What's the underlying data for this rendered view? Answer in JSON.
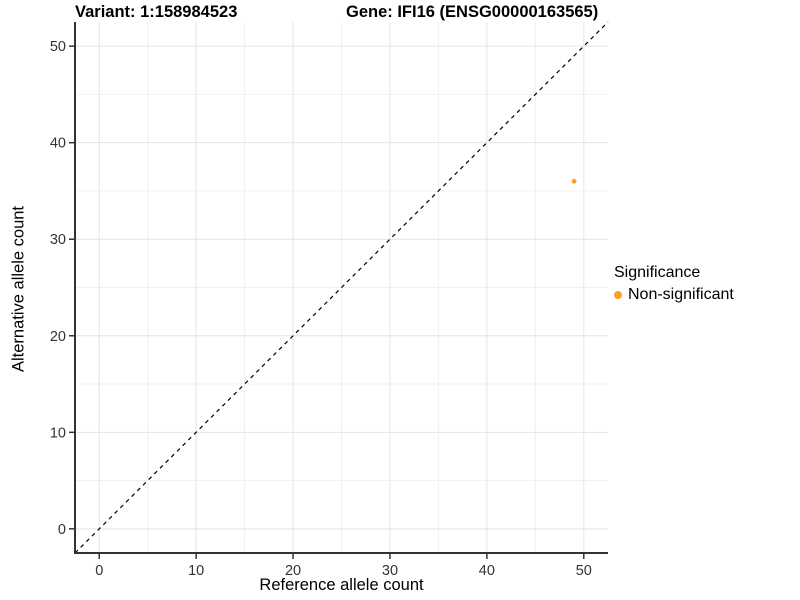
{
  "chart_data": {
    "type": "scatter",
    "title_left": "Variant: 1:158984523",
    "title_right": "Gene: IFI16 (ENSG00000163565)",
    "xlabel": "Reference allele count",
    "ylabel": "Alternative allele count",
    "xlim": [
      -2.5,
      52.5
    ],
    "ylim": [
      -2.5,
      52.5
    ],
    "xticks": [
      0,
      10,
      20,
      30,
      40,
      50
    ],
    "yticks": [
      0,
      10,
      20,
      30,
      40,
      50
    ],
    "xticks_minor": [
      5,
      15,
      25,
      35,
      45
    ],
    "yticks_minor": [
      5,
      15,
      25,
      35,
      45
    ],
    "grid": true,
    "identity_line": {
      "from": -2.5,
      "to": 52.5,
      "style": "dashed",
      "color": "#000000"
    },
    "series": [
      {
        "name": "Non-significant",
        "color": "#F9A21E",
        "points": [
          {
            "x": 49,
            "y": 36
          }
        ]
      }
    ],
    "legend": {
      "title": "Significance",
      "position": "right",
      "items": [
        {
          "label": "Non-significant",
          "color": "#F9A21E"
        }
      ]
    },
    "colors": {
      "axis": "#333333",
      "tick_text": "#333333",
      "grid_major": "#E4E4E4",
      "grid_minor": "#F0F0F0",
      "background": "#FFFFFF",
      "point": "#F9A21E"
    }
  }
}
